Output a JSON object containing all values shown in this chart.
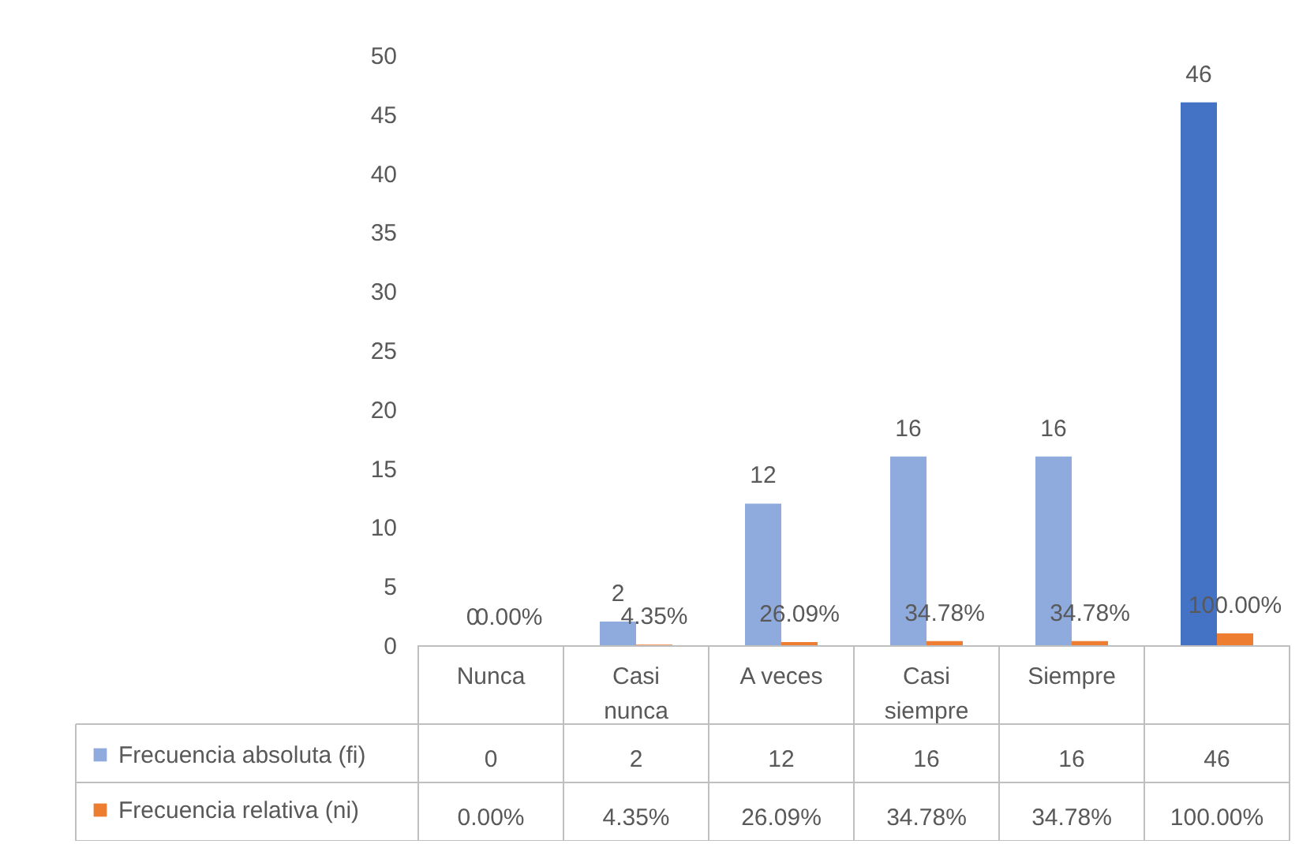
{
  "chart_data": {
    "type": "bar",
    "categories": [
      "Nunca",
      "Casi nunca",
      "A veces",
      "Casi siempre",
      "Siempre",
      null
    ],
    "series": [
      {
        "name": "Frecuencia absoluta (fi)",
        "color": "#8faadc",
        "colors": [
          "#8faadc",
          "#8faadc",
          "#8faadc",
          "#8faadc",
          "#8faadc",
          "#4472c4"
        ],
        "values": [
          0,
          2,
          12,
          16,
          16,
          46
        ],
        "value_labels": [
          "0",
          "2",
          "12",
          "16",
          "16",
          "46"
        ]
      },
      {
        "name": "Frecuencia relativa (ni)",
        "color": "#ed7d31",
        "values": [
          0,
          0.0435,
          0.2609,
          0.3478,
          0.3478,
          1
        ],
        "value_labels": [
          "0.00%",
          "4.35%",
          "26.09%",
          "34.78%",
          "34.78%",
          "100.00%"
        ]
      }
    ],
    "ylim": [
      0,
      50
    ],
    "yticks": [
      0,
      5,
      10,
      15,
      20,
      25,
      30,
      35,
      40,
      45,
      50
    ],
    "grid": false,
    "legend": "bottom left"
  }
}
